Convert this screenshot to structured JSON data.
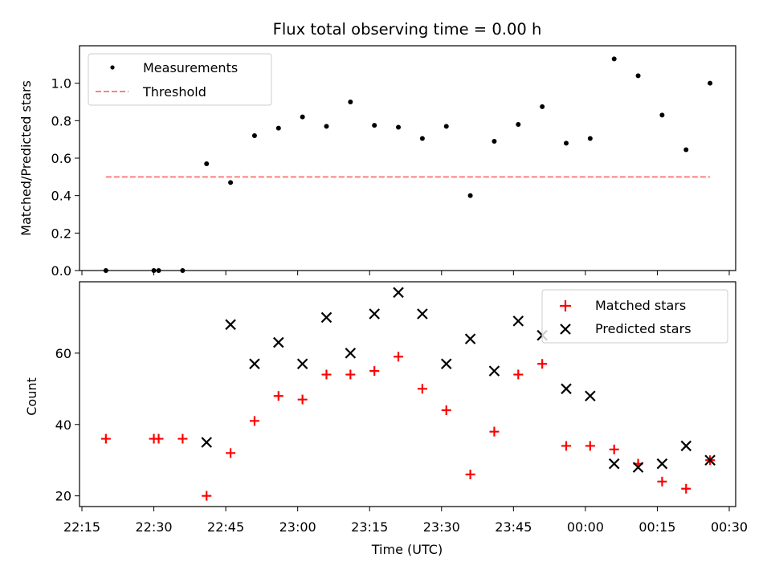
{
  "chart_data": [
    {
      "type": "scatter",
      "title": "Flux total observing time = 0.00 h",
      "ylabel": "Matched/Predicted stars",
      "xlabel": "",
      "ylim": [
        0,
        1.2
      ],
      "yticks": [
        0.0,
        0.2,
        0.4,
        0.6,
        0.8,
        1.0
      ],
      "yticklabels": [
        "0.0",
        "0.2",
        "0.4",
        "0.6",
        "0.8",
        "1.0"
      ],
      "x_tick_labels_visible": false,
      "legend": {
        "position": "top-left",
        "entries": [
          "Measurements",
          "Threshold"
        ]
      },
      "series": [
        {
          "name": "Measurements",
          "marker": "dot",
          "color": "#000000",
          "x": [
            "22:20",
            "22:30",
            "22:31",
            "22:36",
            "22:41",
            "22:46",
            "22:51",
            "22:56",
            "23:01",
            "23:06",
            "23:11",
            "23:16",
            "23:21",
            "23:26",
            "23:31",
            "23:36",
            "23:41",
            "23:46",
            "23:51",
            "23:56",
            "00:01",
            "00:06",
            "00:11",
            "00:16",
            "00:21",
            "00:26"
          ],
          "y": [
            0.0,
            0.0,
            0.0,
            0.0,
            0.57,
            0.47,
            0.72,
            0.76,
            0.82,
            0.77,
            0.9,
            0.775,
            0.765,
            0.705,
            0.77,
            0.4,
            0.69,
            0.78,
            0.875,
            0.68,
            0.705,
            1.13,
            1.04,
            0.83,
            0.645,
            1.0
          ]
        },
        {
          "name": "Threshold",
          "line": "dashed",
          "color": "#ff7f7f",
          "x": [
            "22:20",
            "00:26"
          ],
          "y": [
            0.5,
            0.5
          ]
        }
      ]
    },
    {
      "type": "scatter",
      "xlabel": "Time (UTC)",
      "ylabel": "Count",
      "ylim": [
        17,
        80
      ],
      "yticks": [
        20,
        40,
        60
      ],
      "yticklabels": [
        "20",
        "40",
        "60"
      ],
      "xticks": [
        "22:15",
        "22:30",
        "22:45",
        "23:00",
        "23:15",
        "23:30",
        "23:45",
        "00:00",
        "00:15",
        "00:30"
      ],
      "legend": {
        "position": "top-right",
        "entries": [
          "Matched stars",
          "Predicted stars"
        ]
      },
      "series": [
        {
          "name": "Matched stars",
          "marker": "plus",
          "color": "#ff0000",
          "x": [
            "22:20",
            "22:30",
            "22:31",
            "22:36",
            "22:41",
            "22:46",
            "22:51",
            "22:56",
            "23:01",
            "23:06",
            "23:11",
            "23:16",
            "23:21",
            "23:26",
            "23:31",
            "23:36",
            "23:41",
            "23:46",
            "23:51",
            "23:56",
            "00:01",
            "00:06",
            "00:11",
            "00:16",
            "00:21",
            "00:26"
          ],
          "y": [
            36,
            36,
            36,
            36,
            20,
            32,
            41,
            48,
            47,
            54,
            54,
            55,
            59,
            50,
            44,
            26,
            38,
            54,
            57,
            34,
            34,
            33,
            29,
            24,
            22,
            30
          ]
        },
        {
          "name": "Predicted stars",
          "marker": "x",
          "color": "#000000",
          "x": [
            "22:41",
            "22:46",
            "22:51",
            "22:56",
            "23:01",
            "23:06",
            "23:11",
            "23:16",
            "23:21",
            "23:26",
            "23:31",
            "23:36",
            "23:41",
            "23:46",
            "23:51",
            "23:56",
            "00:01",
            "00:06",
            "00:11",
            "00:16",
            "00:21",
            "00:26"
          ],
          "y": [
            35,
            68,
            57,
            63,
            57,
            70,
            60,
            71,
            77,
            71,
            57,
            64,
            55,
            69,
            65,
            50,
            48,
            29,
            28,
            29,
            34,
            30
          ]
        }
      ]
    }
  ]
}
